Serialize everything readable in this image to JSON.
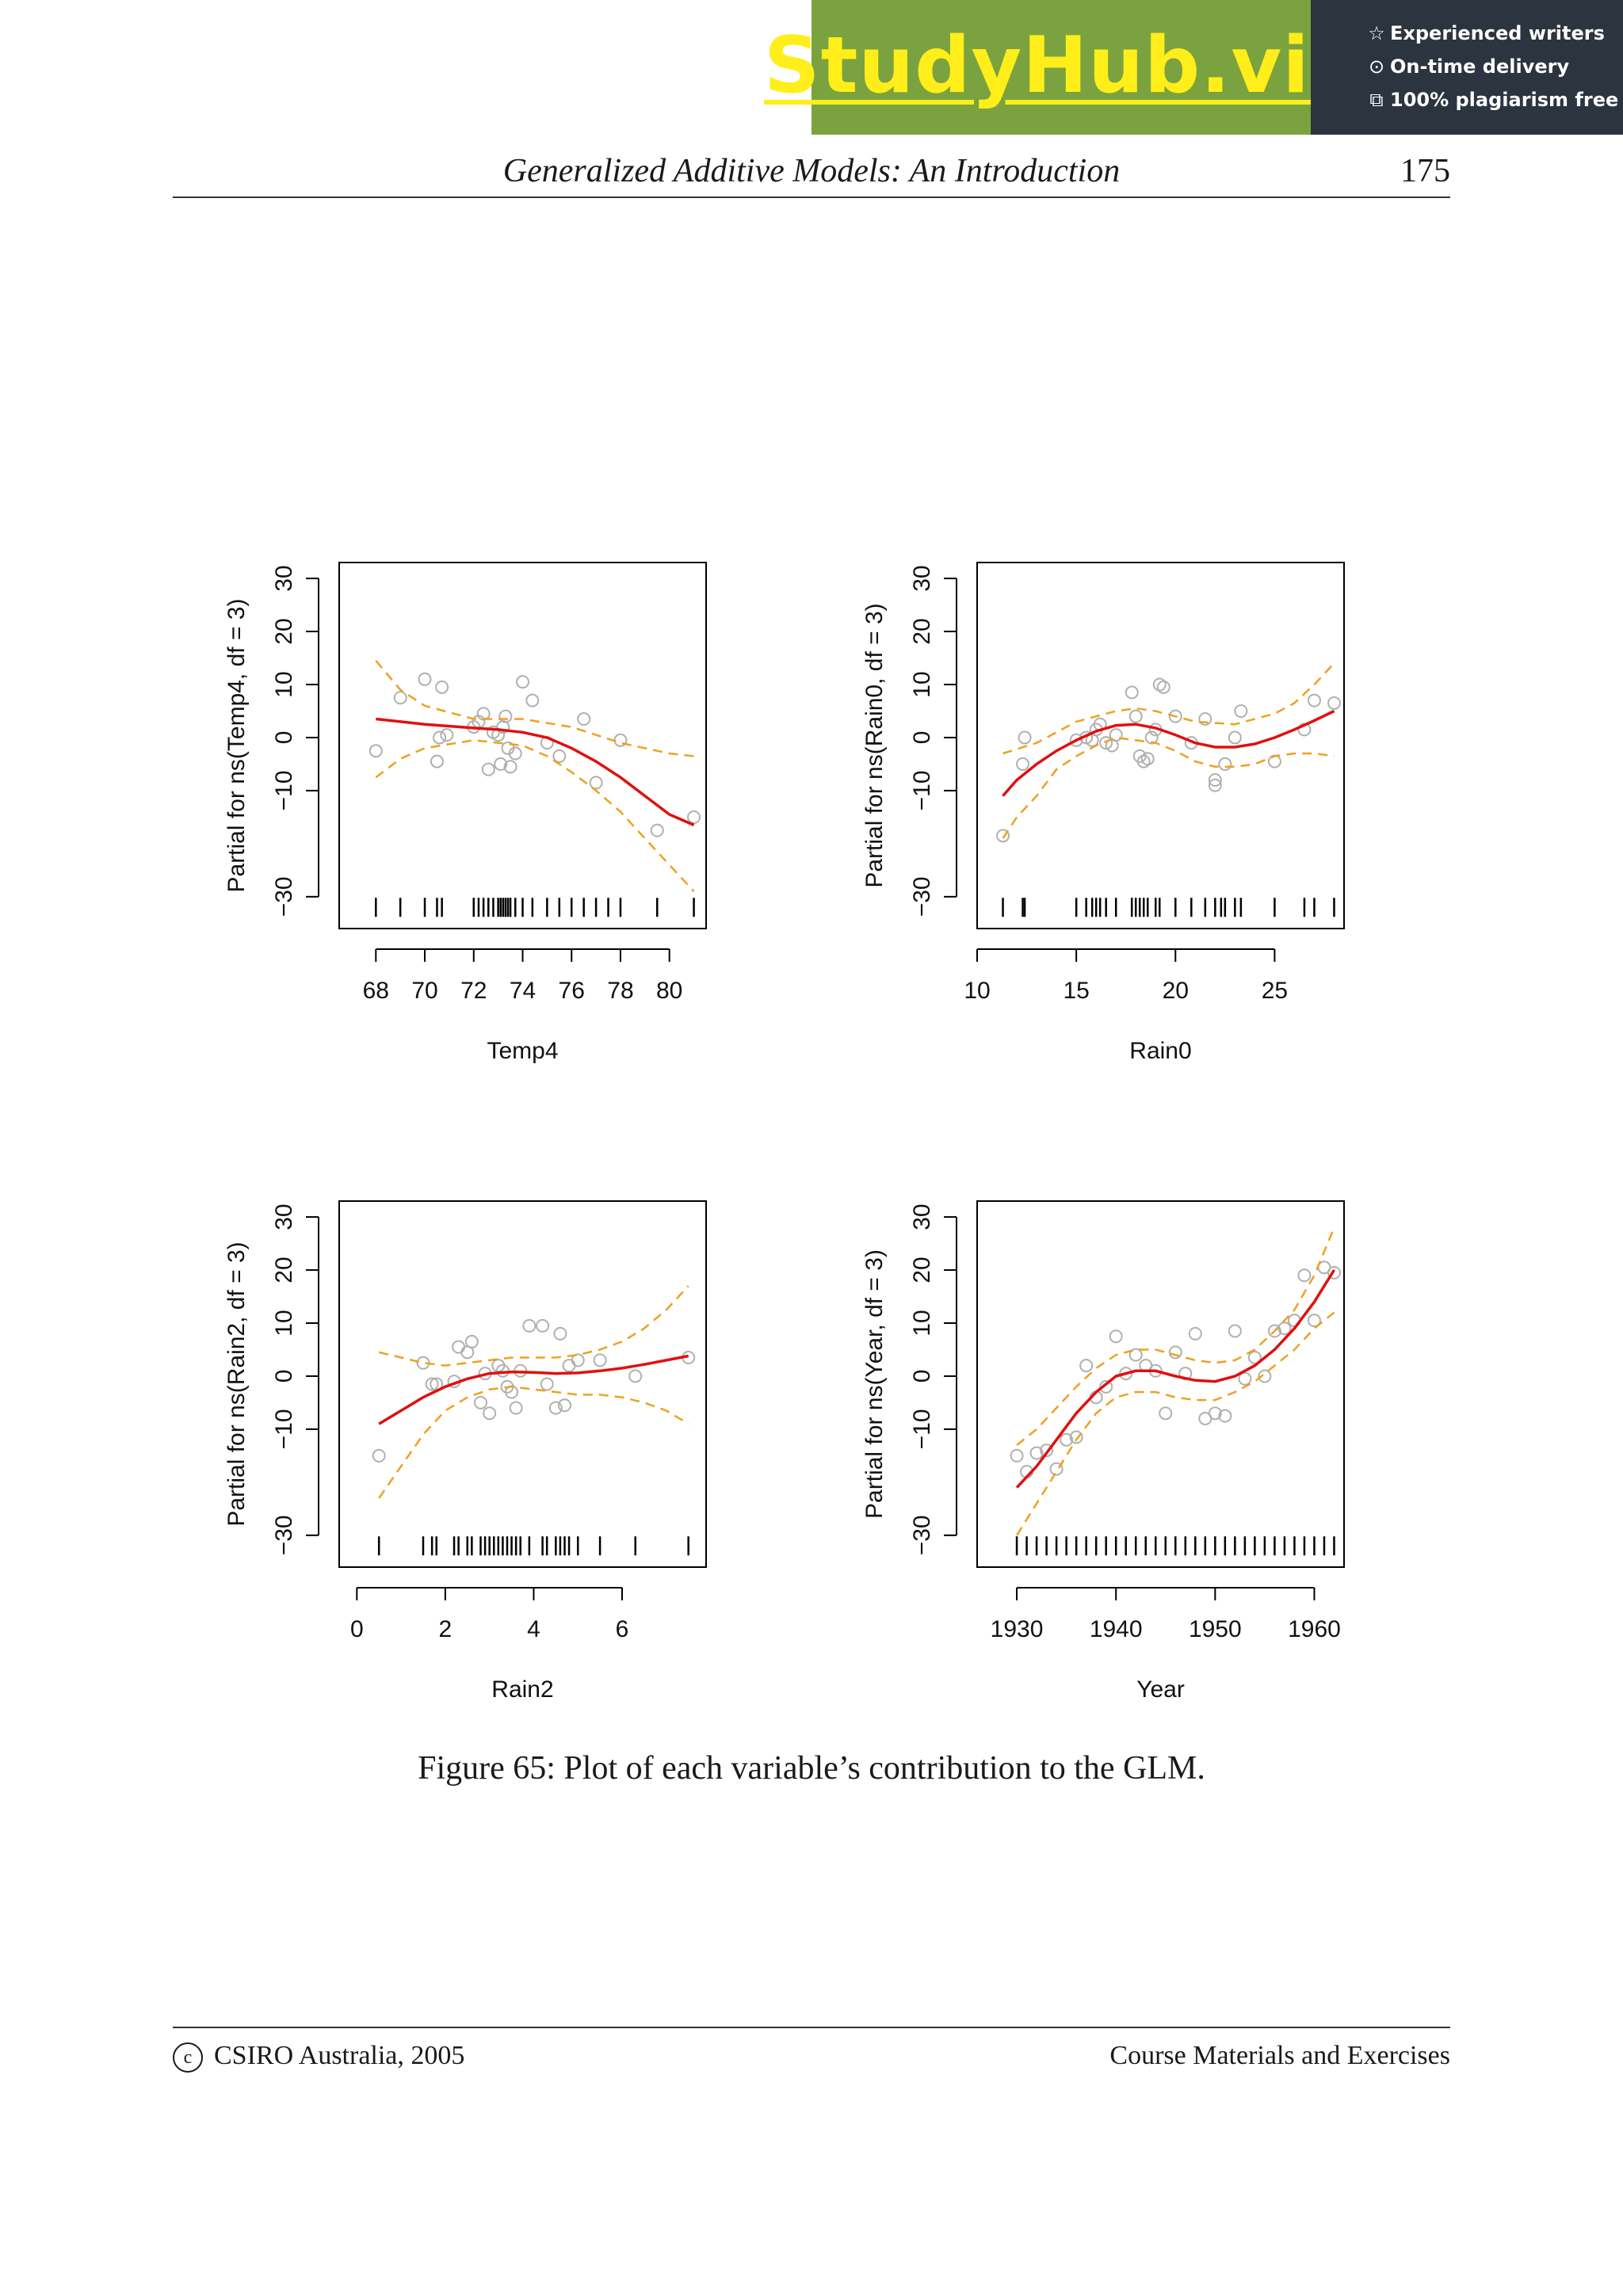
{
  "banner": {
    "logo_text": "StudyHub.vip",
    "badges": [
      {
        "icon": "star-icon",
        "glyph": "☆",
        "label": "Experienced writers"
      },
      {
        "icon": "clock-icon",
        "glyph": "⊙",
        "label": "On-time delivery"
      },
      {
        "icon": "copy-icon",
        "glyph": "⧉",
        "label": "100% plagiarism free"
      }
    ],
    "colors": {
      "left": "#7aa33f",
      "right": "#2c3440",
      "logo": "#ffee1a"
    }
  },
  "header": {
    "title": "Generalized Additive Models: An Introduction",
    "page_number": "175"
  },
  "caption": "Figure 65: Plot of each variable’s contribution to the GLM.",
  "footer": {
    "left": "CSIRO Australia, 2005",
    "copyright_symbol": "c",
    "right": "Course Materials and Exercises"
  },
  "colors": {
    "fit": "#e01010",
    "band": "#f0a020",
    "point": "#b0b0b0",
    "axis": "#000000"
  },
  "chart_data": [
    {
      "type": "line",
      "xlabel": "Temp4",
      "ylabel": "Partial for ns(Temp4, df = 3)",
      "xlim": [
        66.5,
        81.5
      ],
      "ylim": [
        -36,
        33
      ],
      "xticks": [
        68,
        70,
        72,
        74,
        76,
        78,
        80
      ],
      "yticks": [
        -30,
        -10,
        0,
        10,
        20,
        30
      ],
      "fit": {
        "x": [
          68,
          70,
          72,
          73,
          74,
          75,
          76,
          77,
          78,
          79,
          80,
          81
        ],
        "y": [
          3.5,
          2.5,
          1.8,
          1.5,
          1.0,
          0.0,
          -2.0,
          -4.5,
          -7.5,
          -11.0,
          -14.5,
          -16.5
        ]
      },
      "upper": {
        "x": [
          68,
          69,
          70,
          72,
          74,
          76,
          77,
          78,
          79,
          80,
          81
        ],
        "y": [
          14.5,
          9.0,
          6.0,
          3.5,
          3.5,
          2.0,
          0.5,
          -1.0,
          -2.0,
          -3.0,
          -3.5
        ]
      },
      "lower": {
        "x": [
          68,
          69,
          70,
          72,
          74,
          75,
          76,
          77,
          78,
          79,
          80,
          81
        ],
        "y": [
          -7.5,
          -4.0,
          -2.0,
          -0.5,
          -1.5,
          -3.5,
          -6.5,
          -10.0,
          -14.0,
          -19.0,
          -24.0,
          -29.0
        ]
      },
      "points": [
        [
          68,
          -2.5
        ],
        [
          69,
          7.5
        ],
        [
          70,
          11
        ],
        [
          70.7,
          9.5
        ],
        [
          70.5,
          -4.5
        ],
        [
          70.6,
          0
        ],
        [
          70.9,
          0.5
        ],
        [
          72,
          2
        ],
        [
          72.2,
          3
        ],
        [
          72.4,
          4.5
        ],
        [
          72.6,
          -6
        ],
        [
          72.8,
          1
        ],
        [
          73,
          0.5
        ],
        [
          73.1,
          -5
        ],
        [
          73.2,
          2
        ],
        [
          73.3,
          4
        ],
        [
          73.4,
          -2
        ],
        [
          73.5,
          -5.5
        ],
        [
          73.7,
          -3
        ],
        [
          74,
          10.5
        ],
        [
          74.4,
          7
        ],
        [
          75,
          -1
        ],
        [
          75.5,
          -3.5
        ],
        [
          76.5,
          3.5
        ],
        [
          77,
          -8.5
        ],
        [
          78,
          -0.5
        ],
        [
          79.5,
          -17.5
        ],
        [
          81,
          -15
        ]
      ],
      "rug": [
        68,
        69,
        70,
        70.5,
        70.7,
        72,
        72.2,
        72.4,
        72.6,
        72.8,
        73,
        73.1,
        73.2,
        73.3,
        73.4,
        73.5,
        73.7,
        74,
        74.4,
        75,
        75.5,
        76,
        76.5,
        77,
        77.5,
        78,
        79.5,
        81
      ]
    },
    {
      "type": "line",
      "xlabel": "Rain0",
      "ylabel": "Partial for ns(Rain0, df = 3)",
      "xlim": [
        10,
        28.5
      ],
      "ylim": [
        -36,
        33
      ],
      "xticks": [
        10,
        15,
        20,
        25
      ],
      "yticks": [
        -30,
        -10,
        0,
        10,
        20,
        30
      ],
      "fit": {
        "x": [
          11.3,
          12,
          13,
          14,
          15,
          16,
          17,
          18,
          19,
          20,
          21,
          22,
          23,
          24,
          25,
          26,
          27,
          28
        ],
        "y": [
          -11,
          -8,
          -5,
          -2.5,
          -0.5,
          1.2,
          2.3,
          2.5,
          1.8,
          0.5,
          -1,
          -1.8,
          -1.8,
          -1.2,
          0,
          1.5,
          3.2,
          5
        ]
      },
      "upper": {
        "x": [
          11.3,
          13,
          15,
          17,
          18,
          19,
          21,
          23,
          25,
          26,
          27,
          28
        ],
        "y": [
          -3,
          -1,
          3,
          5,
          5.5,
          5,
          3,
          2.5,
          4.5,
          6.5,
          10,
          14
        ]
      },
      "lower": {
        "x": [
          11.3,
          12,
          13,
          14,
          15,
          16,
          17,
          18,
          19,
          20,
          21,
          22,
          23,
          24,
          25,
          26,
          27,
          28
        ],
        "y": [
          -19,
          -15,
          -11,
          -6,
          -3.5,
          -1.5,
          0,
          -0.5,
          -1,
          -2.5,
          -4.5,
          -5.5,
          -5.5,
          -5,
          -3.5,
          -3,
          -3,
          -3.5
        ]
      },
      "points": [
        [
          11.3,
          -18.5
        ],
        [
          12.3,
          -5
        ],
        [
          12.4,
          0
        ],
        [
          15,
          -0.5
        ],
        [
          15.5,
          0
        ],
        [
          15.8,
          -0.5
        ],
        [
          16,
          1.5
        ],
        [
          16.2,
          2.5
        ],
        [
          16.5,
          -1
        ],
        [
          16.8,
          -1.5
        ],
        [
          17,
          0.5
        ],
        [
          17.8,
          8.5
        ],
        [
          18,
          4
        ],
        [
          18.2,
          -3.5
        ],
        [
          18.4,
          -4.5
        ],
        [
          18.6,
          -4
        ],
        [
          18.8,
          0
        ],
        [
          19,
          1.5
        ],
        [
          19.2,
          10
        ],
        [
          19.4,
          9.5
        ],
        [
          20,
          4
        ],
        [
          20.8,
          -1
        ],
        [
          21.5,
          3.5
        ],
        [
          22,
          -8
        ],
        [
          22,
          -9
        ],
        [
          22.5,
          -5
        ],
        [
          23,
          0
        ],
        [
          23.3,
          5
        ],
        [
          25,
          -4.5
        ],
        [
          26.5,
          1.5
        ],
        [
          27,
          7
        ],
        [
          28,
          6.5
        ]
      ],
      "rug": [
        11.3,
        12.3,
        12.4,
        15,
        15.5,
        15.8,
        16,
        16.2,
        16.5,
        17,
        17.8,
        18,
        18.2,
        18.4,
        18.6,
        19,
        19.2,
        20,
        20.8,
        21.5,
        22,
        22.3,
        22.5,
        23,
        23.3,
        25,
        26.5,
        27,
        28
      ]
    },
    {
      "type": "line",
      "xlabel": "Rain2",
      "ylabel": "Partial for ns(Rain2, df = 3)",
      "xlim": [
        -0.4,
        7.9
      ],
      "ylim": [
        -36,
        33
      ],
      "xticks": [
        0,
        2,
        4,
        6
      ],
      "yticks": [
        -30,
        -10,
        0,
        10,
        20,
        30
      ],
      "fit": {
        "x": [
          0.5,
          1,
          1.5,
          2,
          2.5,
          3,
          3.5,
          4,
          4.5,
          5,
          5.5,
          6,
          6.5,
          7,
          7.5
        ],
        "y": [
          -9,
          -6.5,
          -4,
          -2,
          -0.5,
          0.5,
          0.8,
          0.7,
          0.5,
          0.6,
          1,
          1.5,
          2.2,
          3,
          3.8
        ]
      },
      "upper": {
        "x": [
          0.5,
          1,
          1.5,
          2,
          2.5,
          3,
          3.5,
          4,
          4.5,
          5,
          5.5,
          6,
          6.5,
          7,
          7.5
        ],
        "y": [
          4.5,
          3.5,
          2.5,
          2,
          2.5,
          3,
          3.5,
          3.5,
          3.5,
          4,
          5,
          6.5,
          9,
          12.5,
          17
        ]
      },
      "lower": {
        "x": [
          0.5,
          1,
          1.5,
          2,
          2.5,
          3,
          3.5,
          4,
          4.5,
          5,
          5.5,
          6,
          6.5,
          7,
          7.5
        ],
        "y": [
          -23,
          -17,
          -11,
          -6.5,
          -4,
          -2.5,
          -2,
          -2.5,
          -3,
          -3.5,
          -3.5,
          -4,
          -5,
          -6.5,
          -9
        ]
      },
      "points": [
        [
          0.5,
          -15
        ],
        [
          1.5,
          2.5
        ],
        [
          1.7,
          -1.5
        ],
        [
          1.8,
          -1.5
        ],
        [
          2.2,
          -1
        ],
        [
          2.3,
          5.5
        ],
        [
          2.5,
          4.5
        ],
        [
          2.6,
          6.5
        ],
        [
          2.8,
          -5
        ],
        [
          2.9,
          0.5
        ],
        [
          3,
          -7
        ],
        [
          3.2,
          2
        ],
        [
          3.3,
          1
        ],
        [
          3.4,
          -2
        ],
        [
          3.5,
          -3
        ],
        [
          3.6,
          -6
        ],
        [
          3.7,
          1
        ],
        [
          3.9,
          9.5
        ],
        [
          4.2,
          9.5
        ],
        [
          4.3,
          -1.5
        ],
        [
          4.5,
          -6
        ],
        [
          4.6,
          8
        ],
        [
          4.7,
          -5.5
        ],
        [
          4.8,
          2
        ],
        [
          5,
          3
        ],
        [
          5.5,
          3
        ],
        [
          6.3,
          0
        ],
        [
          7.5,
          3.5
        ]
      ],
      "rug": [
        0.5,
        1.5,
        1.7,
        1.8,
        2.2,
        2.3,
        2.5,
        2.6,
        2.8,
        2.9,
        3,
        3.1,
        3.2,
        3.3,
        3.4,
        3.5,
        3.6,
        3.7,
        3.9,
        4.2,
        4.3,
        4.5,
        4.6,
        4.7,
        4.8,
        5,
        5.5,
        6.3,
        7.5
      ]
    },
    {
      "type": "line",
      "xlabel": "Year",
      "ylabel": "Partial for ns(Year, df = 3)",
      "xlim": [
        1926,
        1963
      ],
      "ylim": [
        -36,
        33
      ],
      "xticks": [
        1930,
        1940,
        1950,
        1960
      ],
      "yticks": [
        -30,
        -10,
        0,
        10,
        20,
        30
      ],
      "fit": {
        "x": [
          1930,
          1932,
          1934,
          1936,
          1938,
          1940,
          1942,
          1944,
          1946,
          1948,
          1950,
          1952,
          1954,
          1956,
          1958,
          1960,
          1962
        ],
        "y": [
          -21,
          -17,
          -12,
          -7,
          -3,
          0,
          1,
          1,
          0,
          -0.8,
          -1,
          0,
          2,
          5,
          9,
          14,
          20
        ]
      },
      "upper": {
        "x": [
          1930,
          1932,
          1934,
          1936,
          1938,
          1940,
          1942,
          1944,
          1946,
          1948,
          1950,
          1952,
          1954,
          1956,
          1958,
          1960,
          1962
        ],
        "y": [
          -13,
          -10,
          -6,
          -2,
          1.5,
          4,
          5,
          5,
          4,
          3,
          2.5,
          3,
          5,
          8.5,
          12.5,
          19,
          28
        ]
      },
      "lower": {
        "x": [
          1930,
          1932,
          1934,
          1936,
          1938,
          1940,
          1942,
          1944,
          1946,
          1948,
          1950,
          1952,
          1954,
          1956,
          1958,
          1960,
          1962
        ],
        "y": [
          -30,
          -24,
          -18,
          -12,
          -7,
          -4,
          -3,
          -3,
          -4,
          -4.5,
          -4.5,
          -3,
          -1,
          2,
          5,
          9,
          12
        ]
      },
      "points": [
        [
          1930,
          -15
        ],
        [
          1931,
          -18
        ],
        [
          1932,
          -14.5
        ],
        [
          1933,
          -14
        ],
        [
          1934,
          -17.5
        ],
        [
          1935,
          -12
        ],
        [
          1936,
          -11.5
        ],
        [
          1937,
          2
        ],
        [
          1938,
          -4
        ],
        [
          1939,
          -2
        ],
        [
          1940,
          7.5
        ],
        [
          1941,
          0.5
        ],
        [
          1942,
          4
        ],
        [
          1943,
          2
        ],
        [
          1944,
          1
        ],
        [
          1945,
          -7
        ],
        [
          1946,
          4.5
        ],
        [
          1947,
          0.5
        ],
        [
          1948,
          8
        ],
        [
          1949,
          -8
        ],
        [
          1950,
          -7
        ],
        [
          1951,
          -7.5
        ],
        [
          1952,
          8.5
        ],
        [
          1953,
          -0.5
        ],
        [
          1954,
          3.5
        ],
        [
          1955,
          0
        ],
        [
          1956,
          8.5
        ],
        [
          1957,
          9
        ],
        [
          1958,
          10.5
        ],
        [
          1959,
          19
        ],
        [
          1960,
          10.5
        ],
        [
          1961,
          20.5
        ],
        [
          1962,
          19.5
        ]
      ],
      "rug": [
        1930,
        1931,
        1932,
        1933,
        1934,
        1935,
        1936,
        1937,
        1938,
        1939,
        1940,
        1941,
        1942,
        1943,
        1944,
        1945,
        1946,
        1947,
        1948,
        1949,
        1950,
        1951,
        1952,
        1953,
        1954,
        1955,
        1956,
        1957,
        1958,
        1959,
        1960,
        1961,
        1962
      ]
    }
  ]
}
